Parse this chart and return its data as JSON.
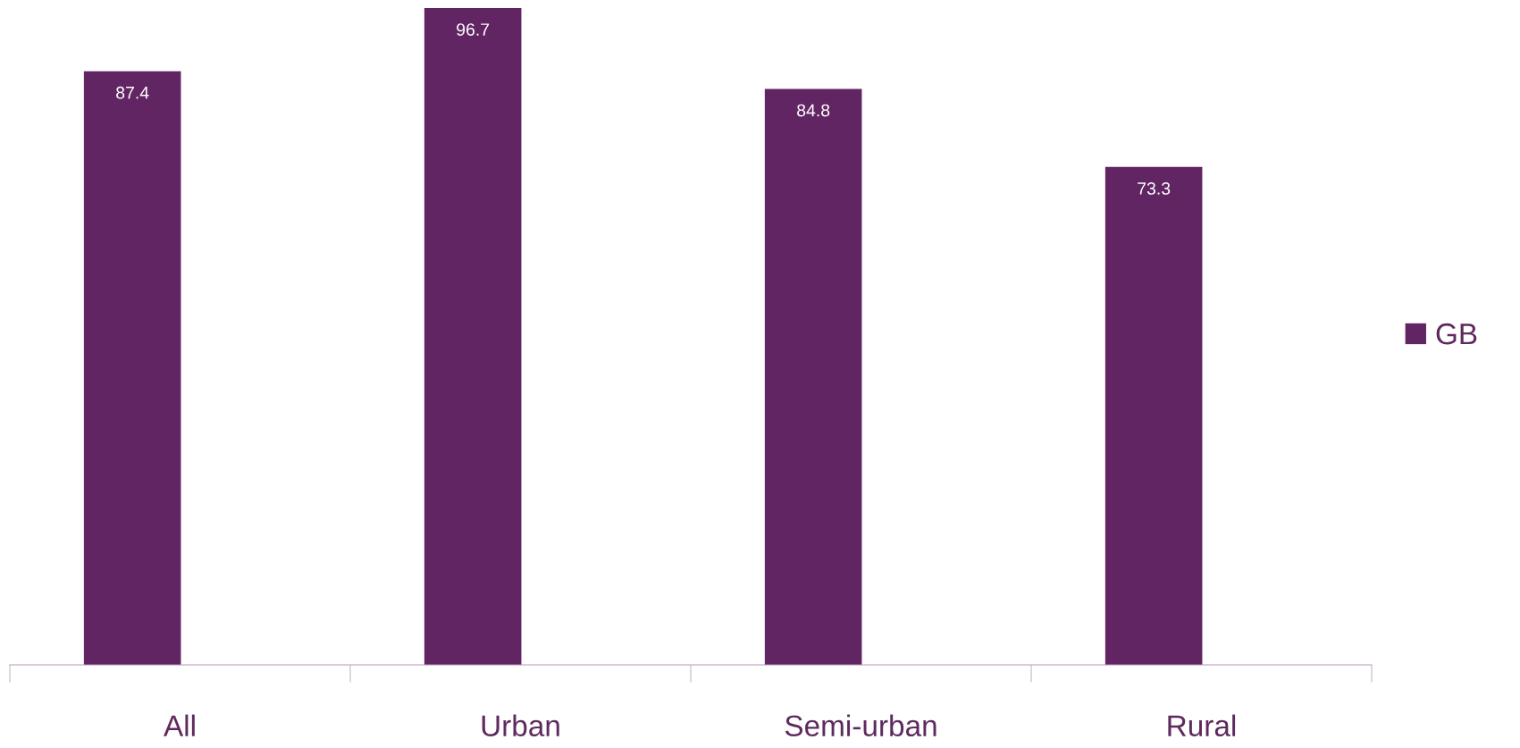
{
  "chart_data": {
    "type": "bar",
    "categories": [
      "All",
      "Urban",
      "Semi-urban",
      "Rural"
    ],
    "series": [
      {
        "name": "GB",
        "color": "#622563",
        "values": [
          87.4,
          96.7,
          84.8,
          73.3
        ]
      }
    ],
    "data_labels": true,
    "legend": "right",
    "grid": false
  }
}
